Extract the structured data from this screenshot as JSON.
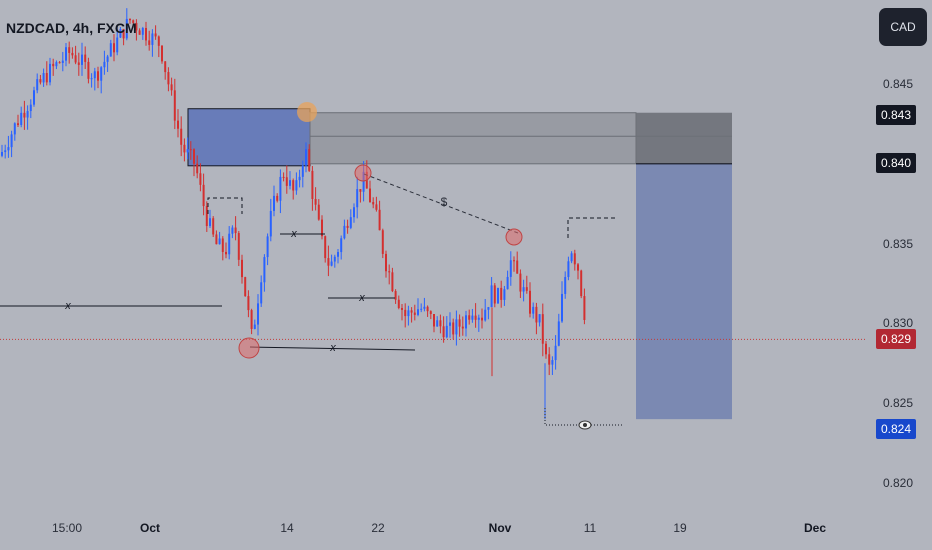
{
  "header": {
    "title": "NZDCAD, 4h, FXCM"
  },
  "currency_button": {
    "label": "CAD"
  },
  "y_axis": {
    "ticks": [
      "0.845",
      "0.835",
      "0.830",
      "0.825",
      "0.820"
    ],
    "badges": [
      {
        "label": "0.843",
        "color": "#131722"
      },
      {
        "label": "0.840",
        "color": "#131722"
      },
      {
        "label": "0.829",
        "color": "#b22833"
      },
      {
        "label": "0.824",
        "color": "#1848cc"
      }
    ]
  },
  "x_axis": {
    "ticks": [
      {
        "label": "15:00",
        "bold": false
      },
      {
        "label": "Oct",
        "bold": true
      },
      {
        "label": "14",
        "bold": false
      },
      {
        "label": "22",
        "bold": false
      },
      {
        "label": "Nov",
        "bold": true
      },
      {
        "label": "11",
        "bold": false
      },
      {
        "label": "19",
        "bold": false
      },
      {
        "label": "Dec",
        "bold": true
      }
    ]
  },
  "chart_data": {
    "type": "candlestick",
    "symbol": "NZDCAD",
    "timeframe": "4h",
    "source": "FXCM",
    "currency": "CAD",
    "ylim": [
      0.8185,
      0.8495
    ],
    "current_price": 0.829,
    "key_points": [
      {
        "label": "Oct",
        "price": 0.84
      },
      {
        "label": "14",
        "price": 0.8432
      },
      {
        "label": "22",
        "price": 0.832
      },
      {
        "label": "Nov",
        "price": 0.829
      },
      {
        "label": "11",
        "price": 0.829
      }
    ],
    "annotations": {
      "line_labels": [
        "x",
        "x",
        "x",
        "x"
      ],
      "trendline_label": "$",
      "supply_zone": [
        0.84,
        0.8432
      ],
      "projection_zone": [
        0.824,
        0.84
      ],
      "target_price": 0.824
    },
    "colors": {
      "up": "#2962ff",
      "down": "#d32f2f"
    }
  }
}
